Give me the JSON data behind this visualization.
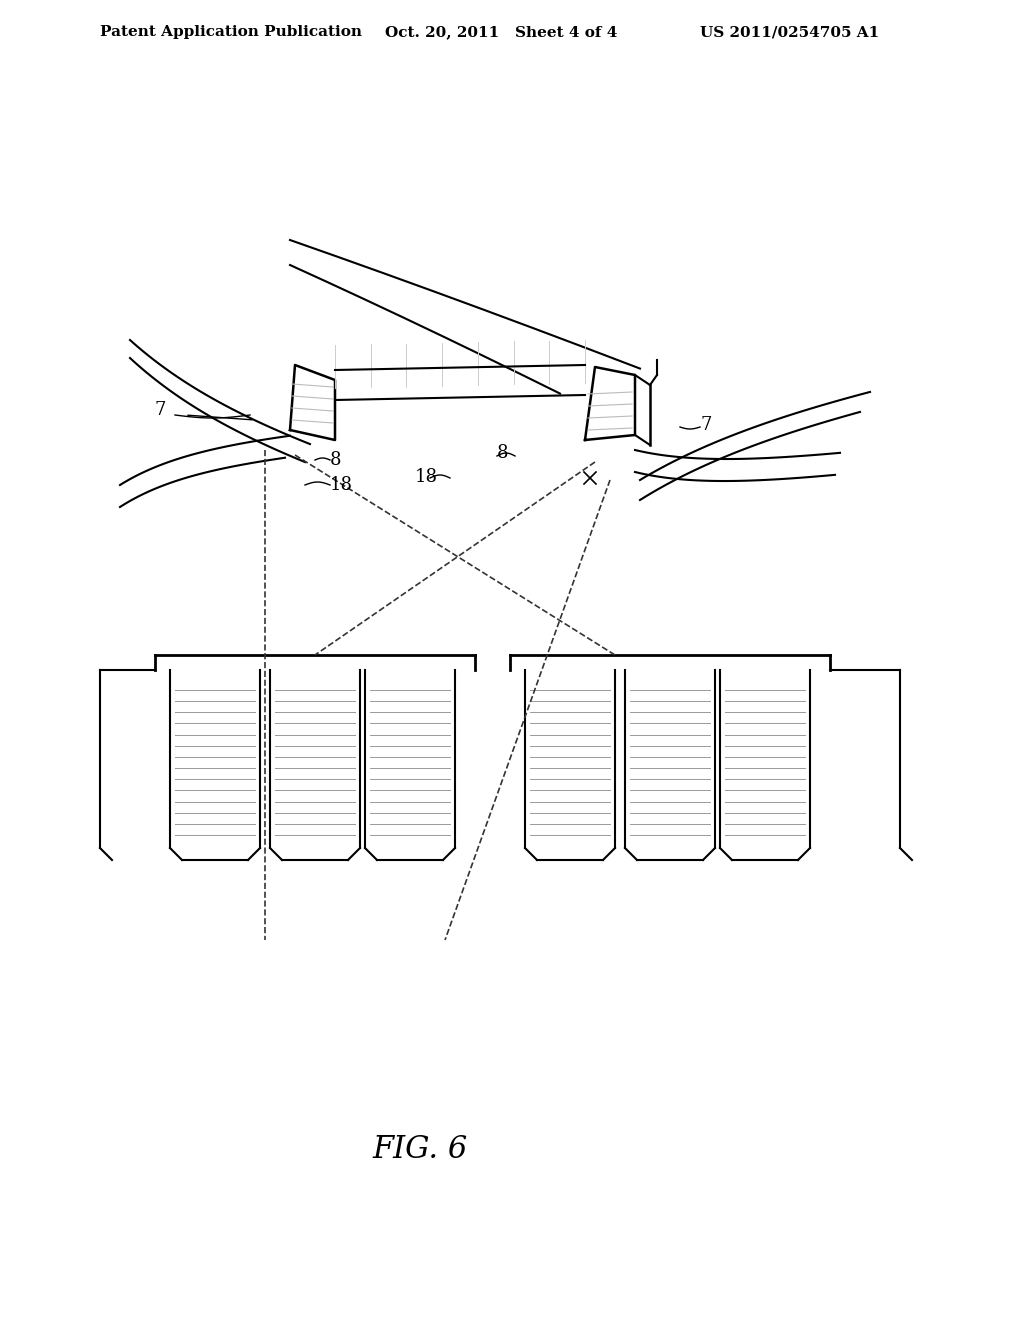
{
  "background_color": "#ffffff",
  "title_text": "Patent Application Publication",
  "title_date": "Oct. 20, 2011",
  "title_sheet": "Sheet 4 of 4",
  "title_patent": "US 2011/0254705 A1",
  "fig_label": "FIG. 6",
  "line_color": "#000000",
  "dashed_color": "#333333",
  "gray_color": "#888888",
  "light_gray": "#cccccc",
  "hatch_color": "#aaaaaa"
}
